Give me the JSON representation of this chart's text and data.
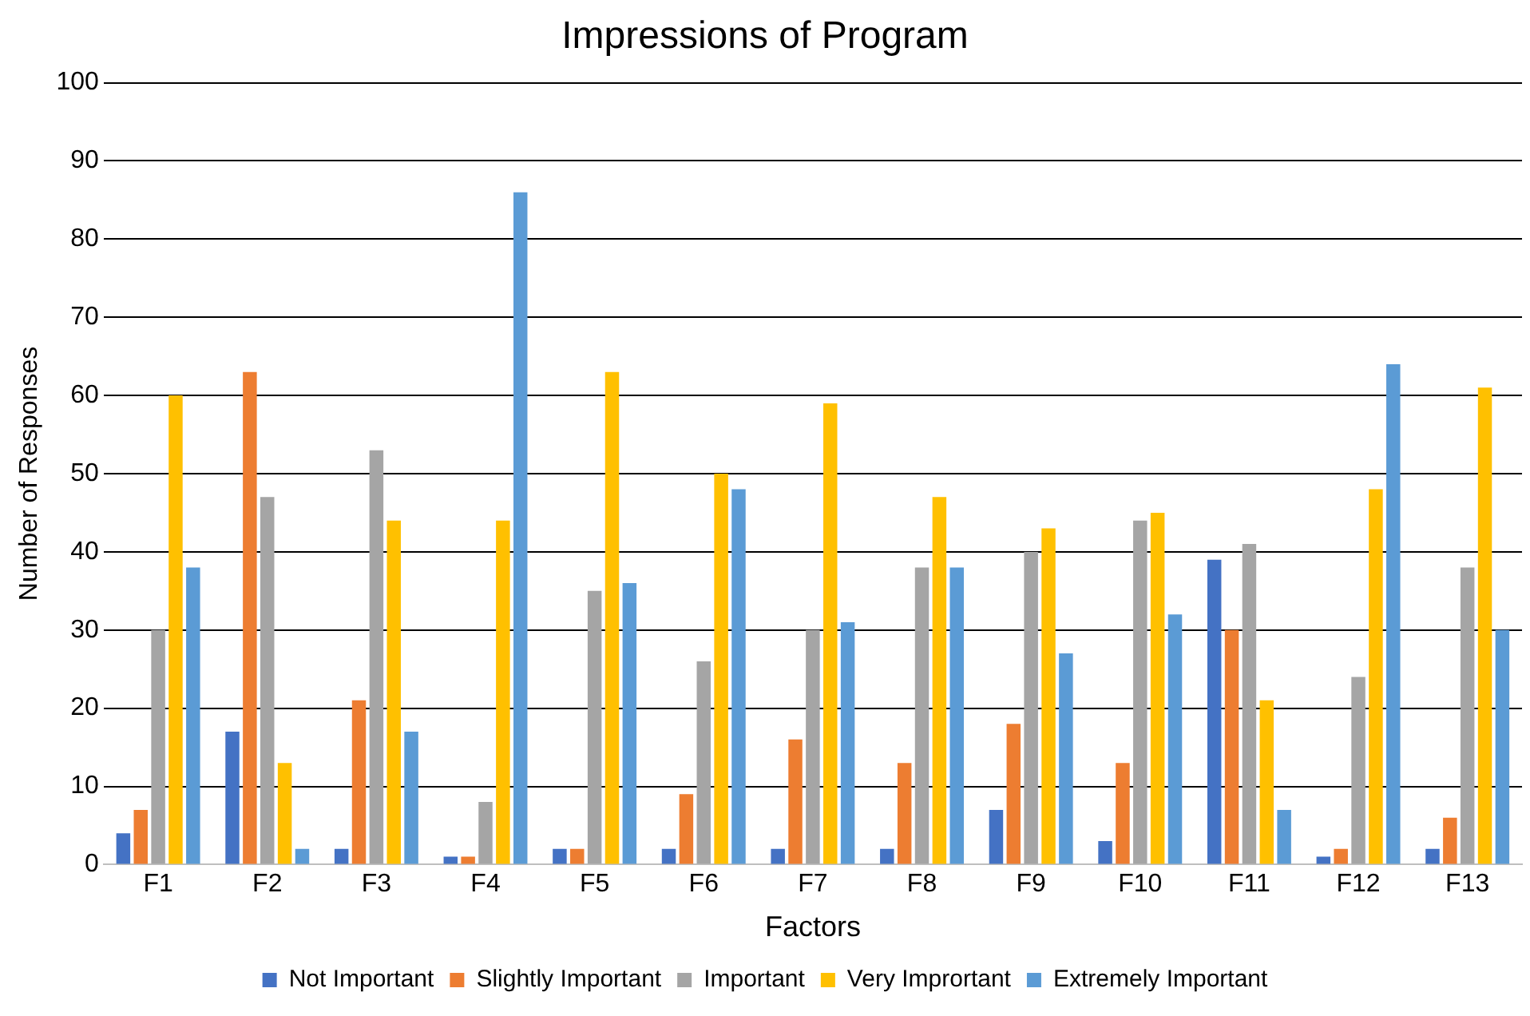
{
  "chart_data": {
    "type": "bar",
    "title": "Impressions of Program",
    "xlabel": "Factors",
    "ylabel": "Number of Responses",
    "categories": [
      "F1",
      "F2",
      "F3",
      "F4",
      "F5",
      "F6",
      "F7",
      "F8",
      "F9",
      "F10",
      "F11",
      "F12",
      "F13"
    ],
    "series": [
      {
        "name": "Not Important",
        "color": "#4472c4",
        "values": [
          4,
          17,
          2,
          1,
          2,
          2,
          2,
          2,
          7,
          3,
          39,
          1,
          2
        ]
      },
      {
        "name": "Slightly Important",
        "color": "#ed7d31",
        "values": [
          7,
          63,
          21,
          1,
          2,
          9,
          16,
          13,
          18,
          13,
          30,
          2,
          6
        ]
      },
      {
        "name": "Important",
        "color": "#a5a5a5",
        "values": [
          30,
          47,
          53,
          8,
          35,
          26,
          30,
          38,
          40,
          44,
          41,
          24,
          38
        ]
      },
      {
        "name": "Very Imprortant",
        "color": "#ffc000",
        "values": [
          60,
          13,
          44,
          44,
          63,
          50,
          59,
          47,
          43,
          45,
          21,
          48,
          61
        ]
      },
      {
        "name": "Extremely Important",
        "color": "#5b9bd5",
        "values": [
          38,
          2,
          17,
          86,
          36,
          48,
          31,
          38,
          27,
          32,
          7,
          64,
          30
        ]
      }
    ],
    "ylim": [
      0,
      100
    ],
    "yticks": [
      0,
      10,
      20,
      30,
      40,
      50,
      60,
      70,
      80,
      90,
      100
    ],
    "grid": "y",
    "legend": "bottom"
  }
}
